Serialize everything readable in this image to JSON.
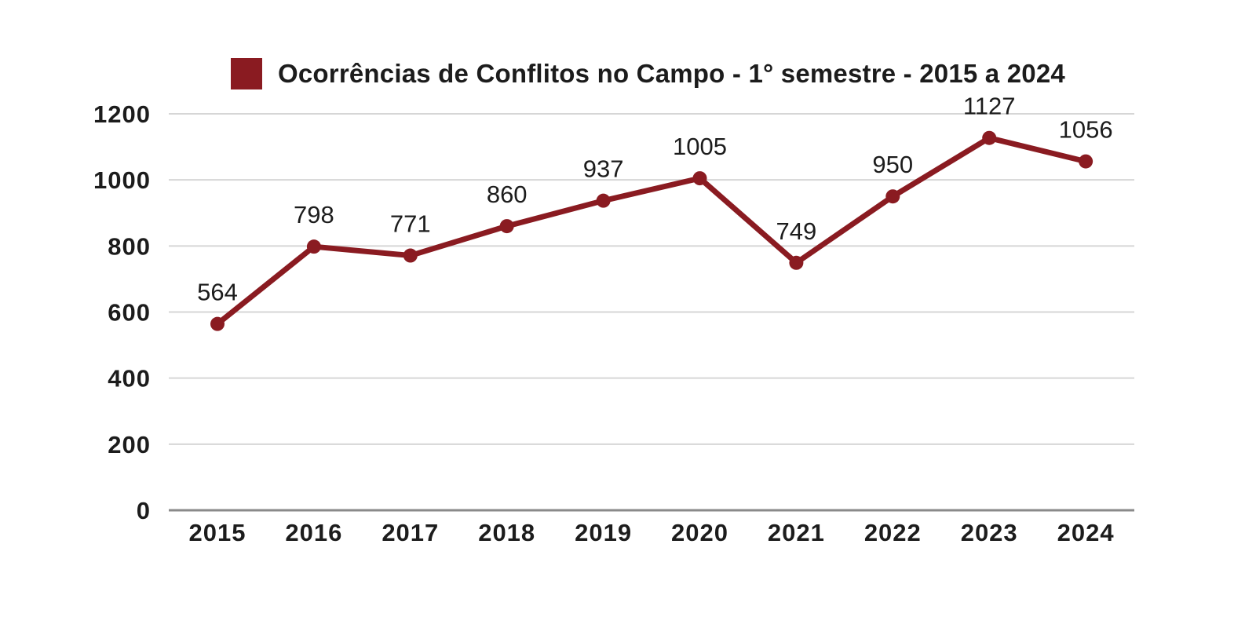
{
  "page": {
    "background": "#ffffff",
    "text_color": "#1c1c1c"
  },
  "legend": {
    "marker_color": "#8A1B21",
    "label": "Ocorrências de Conflitos no Campo - 1° semestre - 2015 a 2024"
  },
  "chart_data": {
    "type": "line",
    "title": "Ocorrências de Conflitos no Campo - 1° semestre - 2015 a 2024",
    "categories": [
      "2015",
      "2016",
      "2017",
      "2018",
      "2019",
      "2020",
      "2021",
      "2022",
      "2023",
      "2024"
    ],
    "series": [
      {
        "name": "Ocorrências de Conflitos no Campo - 1° semestre - 2015 a 2024",
        "values": [
          564,
          798,
          771,
          860,
          937,
          1005,
          749,
          950,
          1127,
          1056
        ],
        "color": "#8A1B21"
      }
    ],
    "xlabel": "",
    "ylabel": "",
    "ylim": [
      0,
      1200
    ],
    "yticks": [
      0,
      200,
      400,
      600,
      800,
      1000,
      1200
    ],
    "grid": "horizontal",
    "gridline_color": "#d6d6d6",
    "axis_line_color": "#8a8a8a",
    "legend_position": "top",
    "data_labels": true,
    "marker": "circle"
  }
}
